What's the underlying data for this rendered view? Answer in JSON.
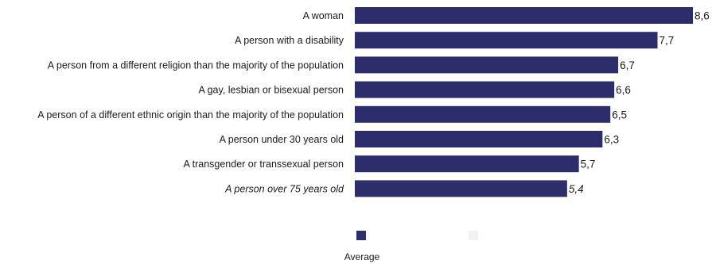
{
  "chart_data": {
    "type": "bar",
    "orientation": "horizontal",
    "categories": [
      "A woman",
      "A person with a disability",
      "A person from a different religion than the majority of the population",
      "A gay, lesbian or bisexual person",
      "A person of a different ethnic origin than the majority of the population",
      "A person under 30 years old",
      "A transgender or transsexual person",
      "A person over 75 years old"
    ],
    "series": [
      {
        "name": "Average",
        "color": "#2e2d6b",
        "values": [
          8.6,
          7.7,
          6.7,
          6.6,
          6.5,
          6.3,
          5.7,
          5.4
        ],
        "value_labels": [
          "8,6",
          "7,7",
          "6,7",
          "6,6",
          "6,5",
          "6,3",
          "5,7",
          "5,4"
        ]
      }
    ],
    "secondary_legend_color": "#f2f2f2",
    "xlim": [
      0,
      8.6
    ],
    "grid": false,
    "legend_placement": "bottom-center"
  }
}
